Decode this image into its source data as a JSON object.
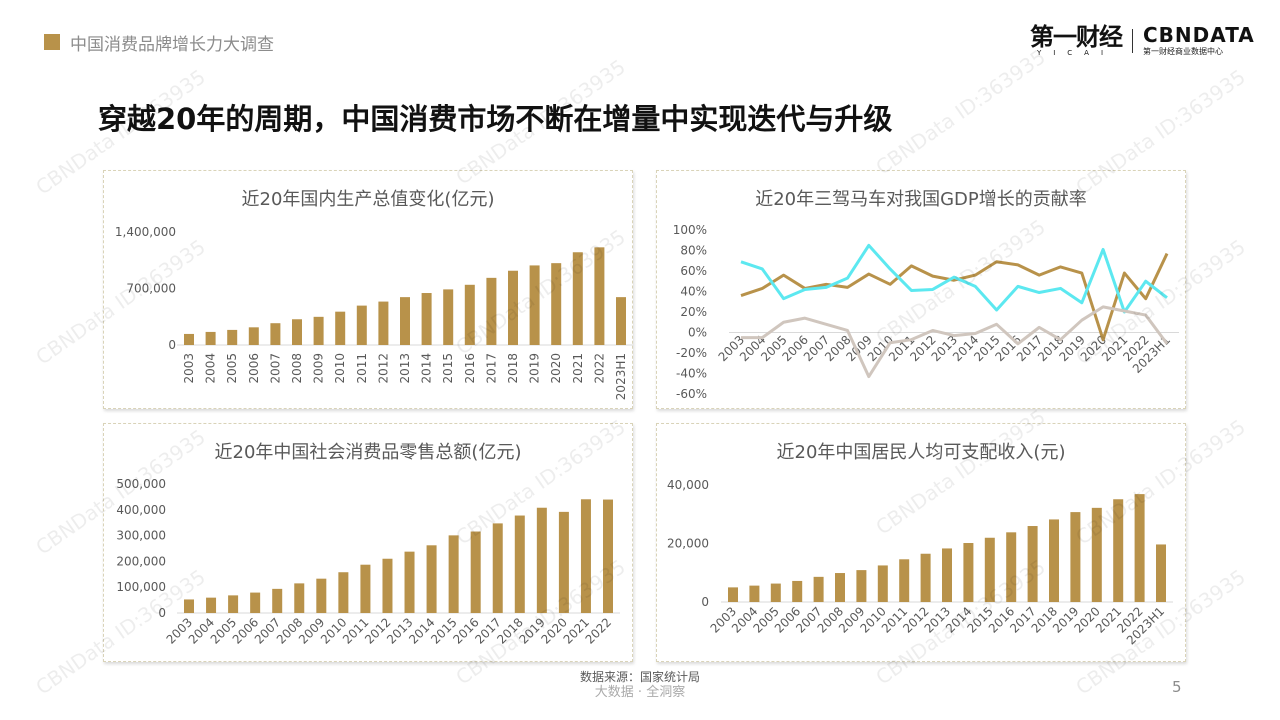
{
  "header": {
    "section": "中国消费品牌增长力大调查",
    "logo_yicai": "第一财经",
    "logo_yicai_sub": "YICAI",
    "logo_cbn": "CBNDATA",
    "logo_cbn_sub": "第一财经商业数据中心"
  },
  "title": "穿越20年的周期，中国消费市场不断在增量中实现迭代与升级",
  "footer": {
    "source": "数据来源：国家统计局",
    "slogan": "大数据 · 全洞察",
    "page": "5"
  },
  "watermark": "CBNData ID:363935",
  "colors": {
    "gold": "#b8924a",
    "cyan": "#5ce8f0",
    "gray": "#d0c6be"
  },
  "chart_data": [
    {
      "type": "bar",
      "title": "近20年国内生产总值变化(亿元)",
      "categories": [
        "2003",
        "2004",
        "2005",
        "2006",
        "2007",
        "2008",
        "2009",
        "2010",
        "2011",
        "2012",
        "2013",
        "2014",
        "2015",
        "2016",
        "2017",
        "2018",
        "2019",
        "2020",
        "2021",
        "2022",
        "2023H1"
      ],
      "values": [
        137000,
        162000,
        187000,
        219000,
        270000,
        319000,
        349000,
        413000,
        488000,
        538000,
        593000,
        644000,
        689000,
        746000,
        832000,
        920000,
        986000,
        1014000,
        1149000,
        1210000,
        593000
      ],
      "ylim": [
        0,
        1400000
      ],
      "yticks": [
        "0",
        "700,000",
        "1,400,000"
      ],
      "ytick_values": [
        0,
        700000,
        1400000
      ],
      "grid": false
    },
    {
      "type": "line",
      "title": "近20年三驾马车对我国GDP增长的贡献率",
      "categories": [
        "2003",
        "2004",
        "2005",
        "2006",
        "2007",
        "2008",
        "2009",
        "2010",
        "2011",
        "2012",
        "2013",
        "2014",
        "2015",
        "2016",
        "2017",
        "2018",
        "2019",
        "2020",
        "2021",
        "2022",
        "2023H1"
      ],
      "series": [
        {
          "color": "#b8924a",
          "values": [
            36,
            43,
            56,
            43,
            47,
            44,
            57,
            47,
            65,
            55,
            51,
            56,
            69,
            66,
            56,
            64,
            58,
            -7,
            58,
            33,
            77
          ]
        },
        {
          "color": "#5ce8f0",
          "values": [
            69,
            62,
            33,
            42,
            44,
            53,
            85,
            62,
            41,
            42,
            54,
            45,
            22,
            45,
            39,
            43,
            29,
            81,
            20,
            50,
            34
          ]
        },
        {
          "color": "#d0c6be",
          "values": [
            -5,
            -5,
            10,
            14,
            8,
            2,
            -43,
            -10,
            -7,
            2,
            -3,
            -1,
            8,
            -11,
            5,
            -7,
            12,
            25,
            21,
            17,
            -11
          ]
        }
      ],
      "ylim": [
        -60,
        100
      ],
      "yticks": [
        "100%",
        "80%",
        "60%",
        "40%",
        "20%",
        "0%",
        "-20%",
        "-40%",
        "-60%"
      ],
      "ytick_values": [
        100,
        80,
        60,
        40,
        20,
        0,
        -20,
        -40,
        -60
      ],
      "grid": false
    },
    {
      "type": "bar",
      "title": "近20年中国社会消费品零售总额(亿元)",
      "categories": [
        "2003",
        "2004",
        "2005",
        "2006",
        "2007",
        "2008",
        "2009",
        "2010",
        "2011",
        "2012",
        "2013",
        "2014",
        "2015",
        "2016",
        "2017",
        "2018",
        "2019",
        "2020",
        "2021",
        "2022"
      ],
      "values": [
        52516,
        59501,
        68353,
        79145,
        93572,
        114830,
        133048,
        158008,
        187206,
        210307,
        237810,
        262394,
        300931,
        315806,
        347327,
        377783,
        408017,
        391981,
        440823,
        439733
      ],
      "ylim": [
        0,
        500000
      ],
      "yticks": [
        "0",
        "100,000",
        "200,000",
        "300,000",
        "400,000",
        "500,000"
      ],
      "ytick_values": [
        0,
        100000,
        200000,
        300000,
        400000,
        500000
      ],
      "grid": false
    },
    {
      "type": "bar",
      "title": "近20年中国居民人均可支配收入(元)",
      "categories": [
        "2003",
        "2004",
        "2005",
        "2006",
        "2007",
        "2008",
        "2009",
        "2010",
        "2011",
        "2012",
        "2013",
        "2014",
        "2015",
        "2016",
        "2017",
        "2018",
        "2019",
        "2020",
        "2021",
        "2022",
        "2023H1"
      ],
      "values": [
        5000,
        5600,
        6300,
        7200,
        8600,
        9900,
        10900,
        12500,
        14600,
        16500,
        18311,
        20167,
        21966,
        23821,
        25974,
        28228,
        30733,
        32189,
        35128,
        36883,
        19672
      ],
      "ylim": [
        0,
        40000
      ],
      "yticks": [
        "0",
        "20,000",
        "40,000"
      ],
      "ytick_values": [
        0,
        20000,
        40000
      ],
      "grid": false
    }
  ]
}
